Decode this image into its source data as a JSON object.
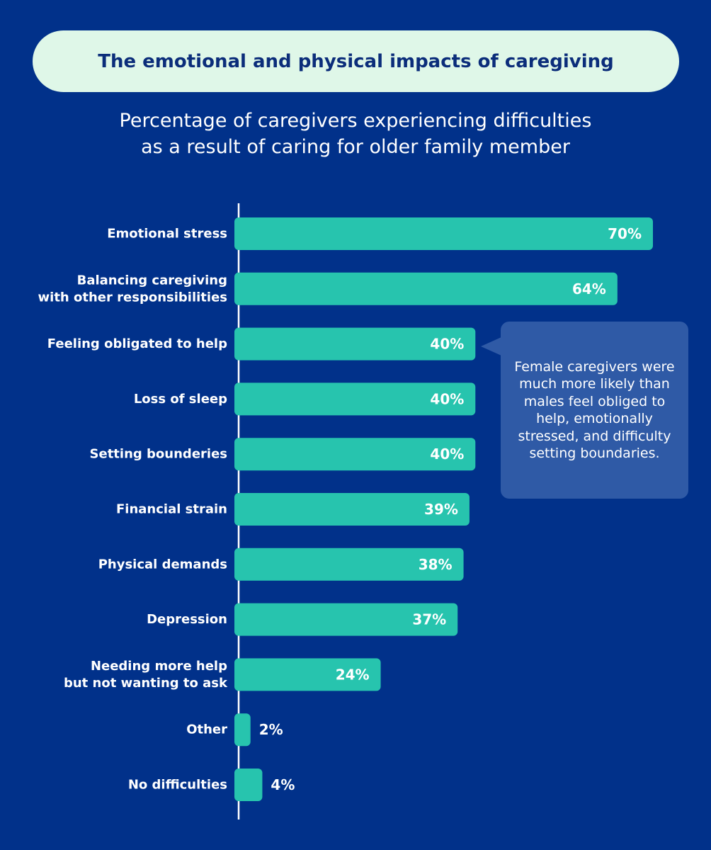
{
  "header": {
    "title": "The emotional and physical impacts of caregiving",
    "subtitle_line1": "Percentage of caregivers experiencing difficulties",
    "subtitle_line2": "as a result of caring for older family member"
  },
  "callout": {
    "text": "Female caregivers were much more likely than males feel obliged to help, emotionally stressed, and difficulty setting boundaries."
  },
  "colors": {
    "background": "#01318a",
    "bar": "#27c4ae",
    "title_pill": "#dff7e8",
    "callout": "#2f5aa6"
  },
  "chart_data": {
    "type": "bar",
    "orientation": "horizontal",
    "title": "The emotional and physical impacts of caregiving",
    "subtitle": "Percentage of caregivers experiencing difficulties as a result of caring for older family member",
    "categories": [
      [
        "Emotional stress"
      ],
      [
        "Balancing caregiving",
        "with other responsibilities"
      ],
      [
        "Feeling obligated to help"
      ],
      [
        "Loss of sleep"
      ],
      [
        "Setting bounderies"
      ],
      [
        "Financial strain"
      ],
      [
        "Physical demands"
      ],
      [
        "Depression"
      ],
      [
        "Needing more help",
        "but not wanting to ask"
      ],
      [
        "Other"
      ],
      [
        "No difficulties"
      ]
    ],
    "values": [
      70,
      64,
      40,
      40,
      40,
      39,
      38,
      37,
      24,
      2,
      4
    ],
    "value_labels": [
      "70%",
      "64%",
      "40%",
      "40%",
      "40%",
      "39%",
      "38%",
      "37%",
      "24%",
      "2%",
      "4%"
    ],
    "unit": "%",
    "xlim": [
      0,
      70
    ],
    "grid": false,
    "legend": "none"
  }
}
